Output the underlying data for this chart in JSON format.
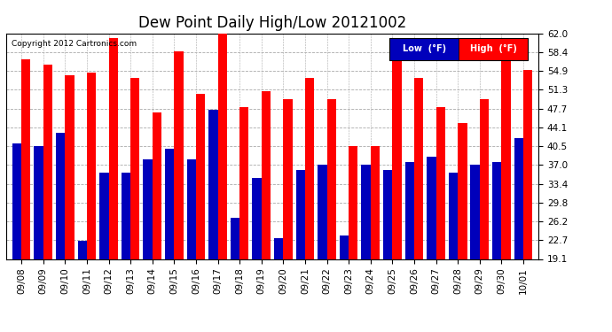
{
  "title": "Dew Point Daily High/Low 20121002",
  "copyright": "Copyright 2012 Cartronics.com",
  "dates": [
    "09/08",
    "09/09",
    "09/10",
    "09/11",
    "09/12",
    "09/13",
    "09/14",
    "09/15",
    "09/16",
    "09/17",
    "09/18",
    "09/19",
    "09/20",
    "09/21",
    "09/22",
    "09/23",
    "09/24",
    "09/25",
    "09/26",
    "09/27",
    "09/28",
    "09/29",
    "09/30",
    "10/01"
  ],
  "high": [
    57.0,
    56.0,
    54.0,
    54.5,
    61.0,
    53.5,
    47.0,
    58.5,
    50.5,
    62.0,
    48.0,
    51.0,
    49.5,
    53.5,
    49.5,
    40.5,
    40.5,
    57.0,
    53.5,
    48.0,
    45.0,
    49.5,
    57.0,
    55.0
  ],
  "low": [
    41.0,
    40.5,
    43.0,
    22.5,
    35.5,
    35.5,
    38.0,
    40.0,
    38.0,
    47.5,
    27.0,
    34.5,
    23.0,
    36.0,
    37.0,
    23.5,
    37.0,
    36.0,
    37.5,
    38.5,
    35.5,
    37.0,
    37.5,
    42.0
  ],
  "ylim_min": 19.1,
  "ylim_max": 62.0,
  "yticks": [
    19.1,
    22.7,
    26.2,
    29.8,
    33.4,
    37.0,
    40.5,
    44.1,
    47.7,
    51.3,
    54.9,
    58.4,
    62.0
  ],
  "high_color": "#ff0000",
  "low_color": "#0000bb",
  "bg_color": "#ffffff",
  "grid_color": "#aaaaaa",
  "title_fontsize": 12,
  "tick_fontsize": 7.5,
  "legend_low_label": "Low  (°F)",
  "legend_high_label": "High  (°F)"
}
